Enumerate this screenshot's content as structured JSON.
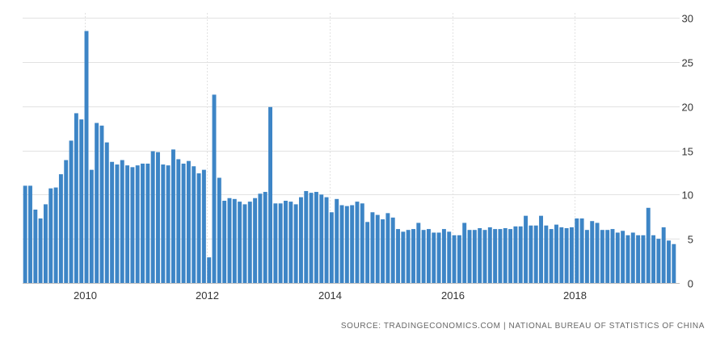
{
  "chart_data": {
    "type": "bar",
    "title": "",
    "xlabel": "",
    "ylabel": "",
    "x_start": "2009-01",
    "frequency": "monthly",
    "values": [
      11.0,
      11.0,
      8.3,
      7.3,
      8.9,
      10.7,
      10.8,
      12.3,
      13.9,
      16.1,
      19.2,
      18.5,
      28.5,
      12.8,
      18.1,
      17.8,
      15.9,
      13.7,
      13.4,
      13.9,
      13.3,
      13.1,
      13.3,
      13.5,
      13.5,
      14.9,
      14.8,
      13.4,
      13.3,
      15.1,
      14.0,
      13.5,
      13.8,
      13.2,
      12.4,
      12.8,
      2.9,
      21.3,
      11.9,
      9.3,
      9.6,
      9.5,
      9.2,
      8.9,
      9.2,
      9.6,
      10.1,
      10.3,
      19.9,
      9.0,
      9.0,
      9.3,
      9.2,
      8.9,
      9.7,
      10.4,
      10.2,
      10.3,
      10.0,
      9.7,
      8.0,
      9.5,
      8.8,
      8.7,
      8.8,
      9.2,
      9.0,
      6.9,
      8.0,
      7.7,
      7.2,
      7.9,
      7.4,
      6.1,
      5.8,
      6.0,
      6.1,
      6.8,
      6.0,
      6.1,
      5.7,
      5.7,
      6.1,
      5.8,
      5.4,
      5.4,
      6.8,
      6.0,
      6.0,
      6.2,
      6.0,
      6.3,
      6.1,
      6.1,
      6.2,
      6.1,
      6.4,
      6.4,
      7.6,
      6.5,
      6.5,
      7.6,
      6.5,
      6.1,
      6.6,
      6.3,
      6.2,
      6.3,
      7.3,
      7.3,
      6.0,
      7.0,
      6.8,
      6.0,
      6.0,
      6.1,
      5.7,
      5.9,
      5.4,
      5.7,
      5.4,
      5.4,
      8.5,
      5.4,
      5.0,
      6.3,
      4.8,
      4.4
    ],
    "x_ticks": [
      "2010",
      "2012",
      "2014",
      "2016",
      "2018"
    ],
    "y_ticks": [
      "0",
      "5",
      "10",
      "15",
      "20",
      "25",
      "30"
    ],
    "ylim": [
      0,
      30
    ],
    "grid": true,
    "y_axis_side": "right",
    "colors": {
      "bar": "#3d85c6",
      "grid": "#e2e2e2",
      "text": "#333333"
    }
  },
  "source": "SOURCE: TRADINGECONOMICS.COM | NATIONAL BUREAU OF STATISTICS OF CHINA"
}
